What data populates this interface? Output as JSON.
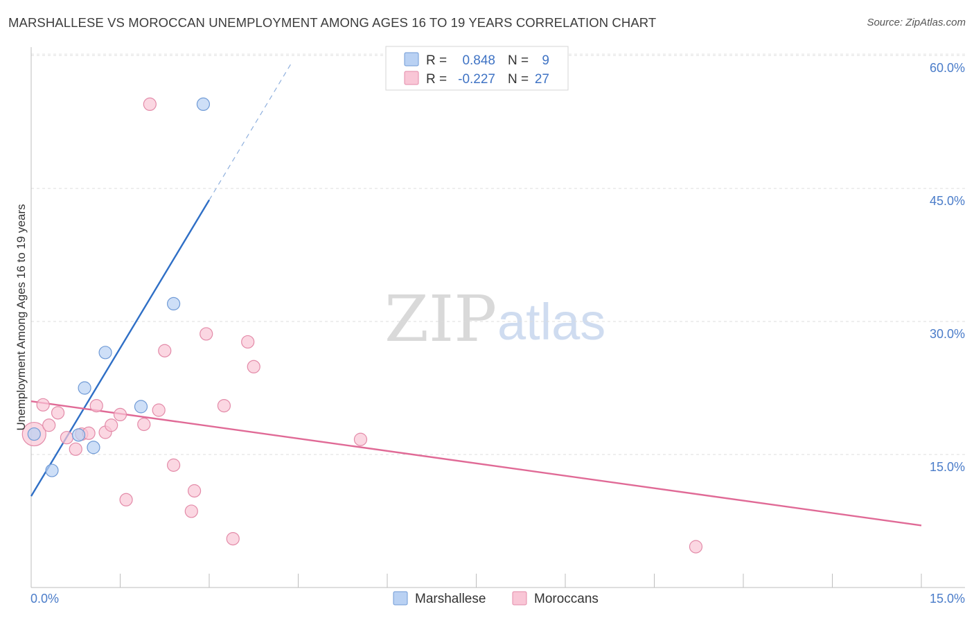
{
  "header": {
    "title": "MARSHALLESE VS MOROCCAN UNEMPLOYMENT AMONG AGES 16 TO 19 YEARS CORRELATION CHART",
    "source": "Source: ZipAtlas.com"
  },
  "watermark": {
    "zip": "ZIP",
    "atlas": "atlas"
  },
  "stats_legend": {
    "rows": [
      {
        "r_label": "R =",
        "r_value": "0.848",
        "n_label": "N =",
        "n_value": "9",
        "fill": "#b9d1f3",
        "stroke": "#6f9ad6"
      },
      {
        "r_label": "R =",
        "r_value": "-0.227",
        "n_label": "N =",
        "n_value": "27",
        "fill": "#f9c6d6",
        "stroke": "#e38aa8"
      }
    ]
  },
  "chart_data": {
    "type": "scatter",
    "title": "MARSHALLESE VS MOROCCAN UNEMPLOYMENT AMONG AGES 16 TO 19 YEARS CORRELATION CHART",
    "xlabel": "",
    "ylabel": "Unemployment Among Ages 16 to 19 years",
    "xlim": [
      0,
      15
    ],
    "ylim": [
      0,
      60
    ],
    "x_tick_labels": [
      "0.0%",
      "15.0%"
    ],
    "y_ticks": [
      15,
      30,
      45,
      60
    ],
    "y_tick_labels": [
      "15.0%",
      "30.0%",
      "45.0%",
      "60.0%"
    ],
    "grid": true,
    "legend": "bottom-center",
    "series": [
      {
        "name": "Marshallese",
        "color": "#6f9ad6",
        "fill": "#b9d1f3",
        "line_color": "#2f6fc6",
        "points": [
          [
            0.05,
            17.3
          ],
          [
            0.35,
            13.2
          ],
          [
            0.8,
            17.2
          ],
          [
            0.9,
            22.5
          ],
          [
            1.05,
            15.8
          ],
          [
            1.25,
            26.5
          ],
          [
            1.85,
            20.4
          ],
          [
            2.4,
            32.0
          ],
          [
            2.9,
            54.5
          ]
        ],
        "trend": {
          "x_start": 0.0,
          "y_start": 10.3,
          "x_solid_end": 3.0,
          "y_solid_end": 43.7,
          "x_dash_end": 4.4,
          "y_dash_end": 59.3
        }
      },
      {
        "name": "Moroccans",
        "color": "#e38aa8",
        "fill": "#f9c6d6",
        "line_color": "#e06a96",
        "points": [
          [
            0.05,
            17.3
          ],
          [
            0.2,
            20.6
          ],
          [
            0.3,
            18.3
          ],
          [
            0.45,
            19.7
          ],
          [
            0.6,
            16.9
          ],
          [
            0.75,
            15.6
          ],
          [
            0.85,
            17.3
          ],
          [
            0.97,
            17.4
          ],
          [
            1.1,
            20.5
          ],
          [
            1.25,
            17.5
          ],
          [
            1.35,
            18.3
          ],
          [
            1.5,
            19.5
          ],
          [
            1.6,
            9.9
          ],
          [
            1.9,
            18.4
          ],
          [
            2.0,
            54.5
          ],
          [
            2.15,
            20.0
          ],
          [
            2.25,
            26.7
          ],
          [
            2.4,
            13.8
          ],
          [
            2.7,
            8.6
          ],
          [
            2.75,
            10.9
          ],
          [
            2.95,
            28.6
          ],
          [
            3.25,
            20.5
          ],
          [
            3.4,
            5.5
          ],
          [
            3.65,
            27.7
          ],
          [
            3.75,
            24.9
          ],
          [
            5.55,
            16.7
          ],
          [
            11.2,
            4.6
          ]
        ],
        "trend": {
          "x_start": 0.0,
          "y_start": 21.0,
          "x_end": 15.0,
          "y_end": 7.0
        }
      }
    ]
  }
}
